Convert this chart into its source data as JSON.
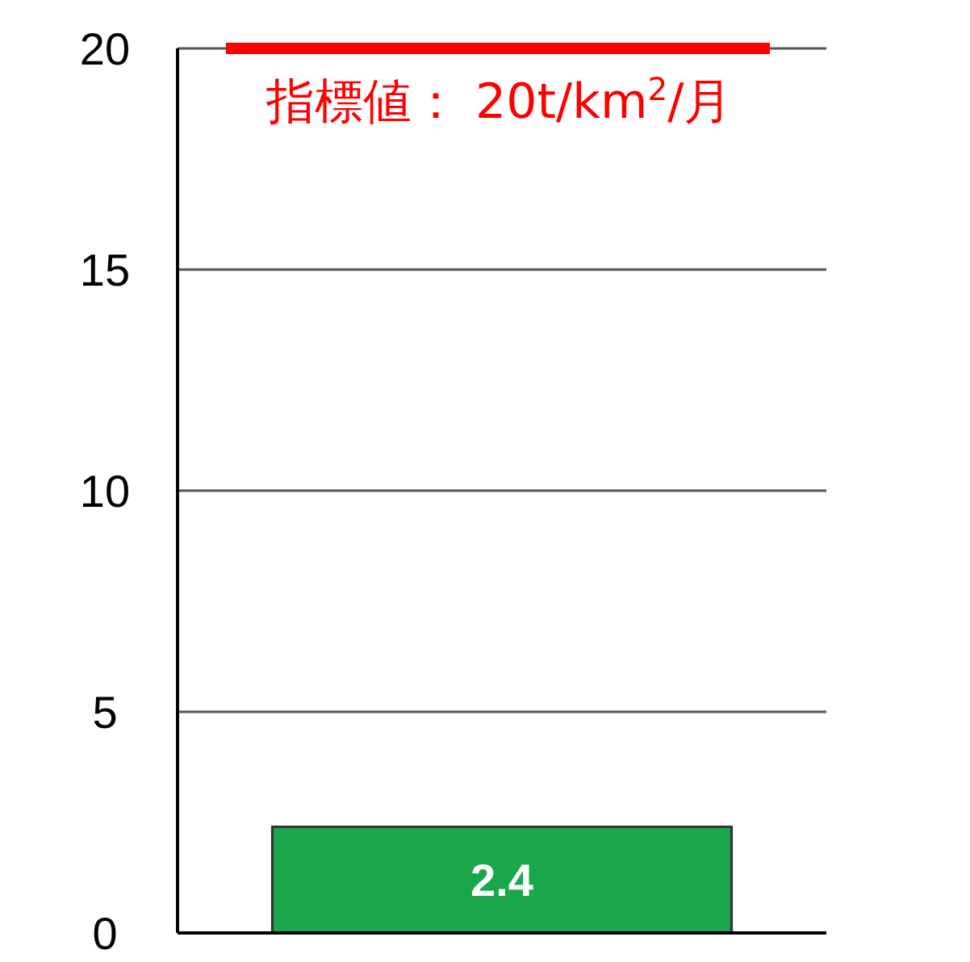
{
  "chart_data": {
    "type": "bar",
    "categories": [
      null
    ],
    "values": [
      2.4
    ],
    "color": "#1aa64a",
    "ylim": [
      0,
      20
    ],
    "yticks": [
      0,
      5,
      10,
      15,
      20
    ],
    "grid": "y",
    "data_labels": true,
    "ref_lines": [
      {
        "axis": "y",
        "value": 20,
        "label": "指標値： 20t/km$^{2}$/月",
        "color": "#ff0000"
      }
    ]
  }
}
